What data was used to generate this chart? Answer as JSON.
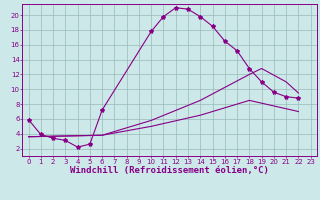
{
  "background_color": "#cce8e8",
  "line_color": "#880088",
  "grid_color": "#99bbbb",
  "xlim": [
    -0.5,
    23.5
  ],
  "ylim": [
    1.0,
    21.5
  ],
  "xtick_vals": [
    0,
    1,
    2,
    3,
    4,
    5,
    6,
    7,
    8,
    9,
    10,
    11,
    12,
    13,
    14,
    15,
    16,
    17,
    18,
    19,
    20,
    21,
    22,
    23
  ],
  "ytick_vals": [
    2,
    4,
    6,
    8,
    10,
    12,
    14,
    16,
    18,
    20
  ],
  "curve1_x": [
    0,
    1,
    2,
    3,
    4,
    5,
    6,
    10,
    11,
    12,
    13,
    14,
    15,
    16,
    17,
    18,
    19,
    20,
    21,
    22
  ],
  "curve1_y": [
    5.9,
    3.9,
    3.4,
    3.1,
    2.2,
    2.6,
    7.2,
    17.8,
    19.8,
    21.0,
    20.8,
    19.8,
    18.5,
    16.5,
    15.2,
    12.8,
    11.0,
    9.6,
    9.0,
    8.8
  ],
  "curve2_x": [
    0,
    6,
    10,
    14,
    18,
    19,
    21,
    22
  ],
  "curve2_y": [
    3.6,
    3.8,
    5.8,
    8.5,
    12.0,
    12.8,
    11.0,
    9.5
  ],
  "curve3_x": [
    0,
    6,
    10,
    14,
    18,
    22
  ],
  "curve3_y": [
    3.6,
    3.8,
    5.0,
    6.5,
    8.5,
    7.0
  ],
  "xlabel": "Windchill (Refroidissement éolien,°C)",
  "tick_fontsize": 5,
  "xlabel_fontsize": 6.5
}
